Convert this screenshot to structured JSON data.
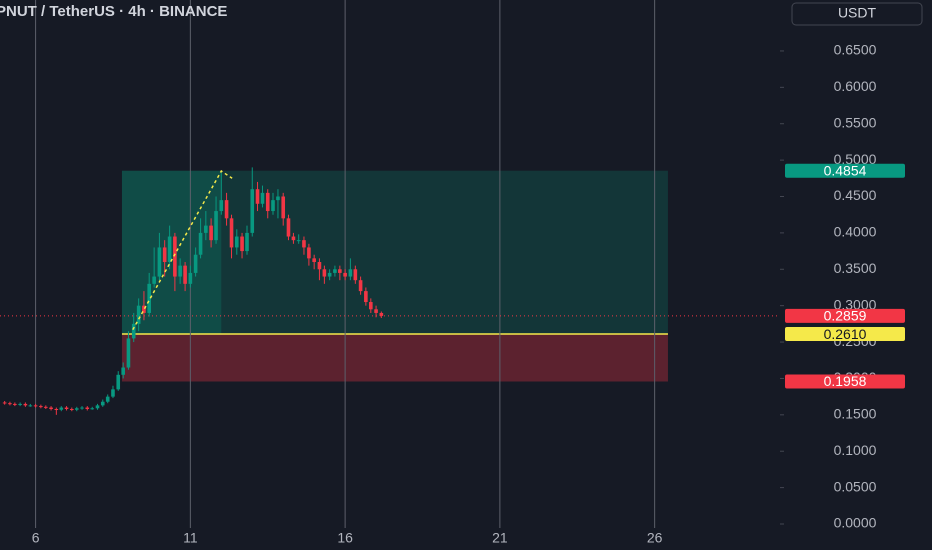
{
  "chart_data": {
    "type": "candlestick",
    "title": "PNUT / TetherUS · 4h · BINANCE",
    "currency": "USDT",
    "x": [
      5,
      5.17,
      5.33,
      5.5,
      5.67,
      5.83,
      6,
      6.17,
      6.33,
      6.5,
      6.67,
      6.83,
      7,
      7.17,
      7.33,
      7.5,
      7.67,
      7.83,
      8,
      8.17,
      8.33,
      8.5,
      8.67,
      8.83,
      9,
      9.17,
      9.33,
      9.5,
      9.67,
      9.83,
      10,
      10.17,
      10.33,
      10.5,
      10.67,
      10.83,
      11,
      11.17,
      11.33,
      11.5,
      11.67,
      11.83,
      12,
      12.17,
      12.33,
      12.5,
      12.67,
      12.83,
      13,
      13.17,
      13.33,
      13.5,
      13.67,
      13.83,
      14,
      14.17,
      14.33,
      14.5,
      14.67,
      14.83,
      15,
      15.17,
      15.33,
      15.5,
      15.67,
      15.83,
      16,
      16.17,
      16.33,
      16.5,
      16.67,
      16.83,
      17,
      17.17
    ],
    "open": [
      0.167,
      0.166,
      0.165,
      0.164,
      0.165,
      0.163,
      0.163,
      0.162,
      0.161,
      0.16,
      0.158,
      0.157,
      0.16,
      0.158,
      0.157,
      0.159,
      0.16,
      0.158,
      0.159,
      0.163,
      0.168,
      0.175,
      0.185,
      0.205,
      0.215,
      0.255,
      0.275,
      0.3,
      0.29,
      0.33,
      0.34,
      0.38,
      0.36,
      0.395,
      0.34,
      0.355,
      0.33,
      0.345,
      0.37,
      0.4,
      0.41,
      0.39,
      0.43,
      0.445,
      0.42,
      0.38,
      0.395,
      0.375,
      0.4,
      0.46,
      0.44,
      0.455,
      0.43,
      0.445,
      0.45,
      0.42,
      0.395,
      0.39,
      0.39,
      0.38,
      0.365,
      0.36,
      0.35,
      0.34,
      0.345,
      0.35,
      0.345,
      0.34,
      0.35,
      0.335,
      0.32,
      0.305,
      0.295,
      0.29
    ],
    "high": [
      0.169,
      0.168,
      0.167,
      0.167,
      0.167,
      0.165,
      0.165,
      0.164,
      0.163,
      0.162,
      0.16,
      0.162,
      0.162,
      0.16,
      0.161,
      0.162,
      0.162,
      0.161,
      0.165,
      0.171,
      0.178,
      0.19,
      0.21,
      0.222,
      0.265,
      0.29,
      0.31,
      0.32,
      0.345,
      0.38,
      0.4,
      0.39,
      0.41,
      0.4,
      0.365,
      0.36,
      0.355,
      0.38,
      0.42,
      0.43,
      0.42,
      0.45,
      0.486,
      0.455,
      0.425,
      0.405,
      0.4,
      0.41,
      0.49,
      0.47,
      0.465,
      0.46,
      0.455,
      0.46,
      0.455,
      0.425,
      0.4,
      0.398,
      0.395,
      0.385,
      0.37,
      0.365,
      0.355,
      0.35,
      0.355,
      0.355,
      0.35,
      0.365,
      0.355,
      0.34,
      0.325,
      0.31,
      0.3,
      0.292
    ],
    "low": [
      0.164,
      0.163,
      0.162,
      0.162,
      0.161,
      0.161,
      0.16,
      0.159,
      0.158,
      0.156,
      0.15,
      0.155,
      0.156,
      0.155,
      0.155,
      0.157,
      0.156,
      0.157,
      0.157,
      0.161,
      0.166,
      0.173,
      0.183,
      0.2,
      0.212,
      0.25,
      0.265,
      0.28,
      0.285,
      0.325,
      0.335,
      0.34,
      0.35,
      0.32,
      0.33,
      0.32,
      0.325,
      0.34,
      0.365,
      0.39,
      0.38,
      0.385,
      0.425,
      0.41,
      0.365,
      0.37,
      0.365,
      0.37,
      0.395,
      0.43,
      0.435,
      0.42,
      0.425,
      0.42,
      0.41,
      0.39,
      0.385,
      0.385,
      0.37,
      0.355,
      0.35,
      0.335,
      0.33,
      0.335,
      0.34,
      0.335,
      0.335,
      0.335,
      0.33,
      0.315,
      0.3,
      0.29,
      0.284,
      0.283
    ],
    "close": [
      0.166,
      0.165,
      0.164,
      0.165,
      0.163,
      0.163,
      0.162,
      0.161,
      0.16,
      0.158,
      0.157,
      0.16,
      0.158,
      0.157,
      0.159,
      0.16,
      0.158,
      0.159,
      0.163,
      0.168,
      0.175,
      0.185,
      0.205,
      0.215,
      0.255,
      0.275,
      0.3,
      0.29,
      0.33,
      0.34,
      0.38,
      0.36,
      0.395,
      0.34,
      0.355,
      0.33,
      0.345,
      0.37,
      0.4,
      0.41,
      0.39,
      0.43,
      0.445,
      0.42,
      0.38,
      0.395,
      0.375,
      0.4,
      0.46,
      0.44,
      0.455,
      0.43,
      0.445,
      0.45,
      0.42,
      0.395,
      0.39,
      0.39,
      0.38,
      0.365,
      0.36,
      0.35,
      0.34,
      0.345,
      0.35,
      0.345,
      0.34,
      0.35,
      0.335,
      0.32,
      0.305,
      0.295,
      0.29,
      0.2859
    ],
    "up_color": "#089981",
    "down_color": "#f23645",
    "xlim": [
      4.85,
      30.05
    ],
    "xticks": [
      6,
      11,
      16,
      21,
      26
    ],
    "ylim": [
      0,
      0.72
    ],
    "yticks": [
      {
        "value": 0,
        "label": "0.0000"
      },
      {
        "value": 0.05,
        "label": "0.0500"
      },
      {
        "value": 0.1,
        "label": "0.1000"
      },
      {
        "value": 0.15,
        "label": "0.1500"
      },
      {
        "value": 0.2,
        "label": "0.2000"
      },
      {
        "value": 0.25,
        "label": "0.2500"
      },
      {
        "value": 0.3,
        "label": "0.3000"
      },
      {
        "value": 0.35,
        "label": "0.3500"
      },
      {
        "value": 0.4,
        "label": "0.4000"
      },
      {
        "value": 0.45,
        "label": "0.4500"
      },
      {
        "value": 0.5,
        "label": "0.5000"
      },
      {
        "value": 0.55,
        "label": "0.5500"
      },
      {
        "value": 0.6,
        "label": "0.6000"
      },
      {
        "value": 0.65,
        "label": "0.6500"
      }
    ],
    "position": {
      "entry": {
        "value": 0.261,
        "label": "0.2610"
      },
      "target": 0.4854,
      "stop": 0.1958,
      "start": 8.79,
      "end": 26.43,
      "highlight_end": 12.0
    },
    "trendline": {
      "x": [
        9.14,
        12.0,
        12.35
      ],
      "y": [
        0.267,
        0.485,
        0.475
      ]
    }
  }
}
